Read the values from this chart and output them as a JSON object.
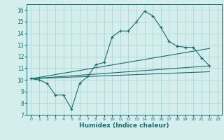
{
  "xlabel": "Humidex (Indice chaleur)",
  "xlim": [
    -0.5,
    23.5
  ],
  "ylim": [
    7.0,
    16.5
  ],
  "yticks": [
    7,
    8,
    9,
    10,
    11,
    12,
    13,
    14,
    15,
    16
  ],
  "xticks": [
    0,
    1,
    2,
    3,
    4,
    5,
    6,
    7,
    8,
    9,
    10,
    11,
    12,
    13,
    14,
    15,
    16,
    17,
    18,
    19,
    20,
    21,
    22,
    23
  ],
  "bg_color": "#d4eeee",
  "line_color": "#1a6b6b",
  "grid_color": "#aacfcf",
  "line1_x": [
    0,
    1,
    2,
    3,
    4,
    5,
    6,
    7,
    8,
    9,
    10,
    11,
    12,
    13,
    14,
    15,
    16,
    17,
    18,
    19,
    20,
    21,
    22
  ],
  "line1_y": [
    10.1,
    10.0,
    9.7,
    8.7,
    8.7,
    7.5,
    9.7,
    10.3,
    11.3,
    11.5,
    13.7,
    14.2,
    14.2,
    15.0,
    15.9,
    15.5,
    14.5,
    13.3,
    12.9,
    12.8,
    12.8,
    11.9,
    11.2
  ],
  "line2_x": [
    0,
    22
  ],
  "line2_y": [
    10.1,
    11.2
  ],
  "line3_x": [
    0,
    22
  ],
  "line3_y": [
    10.1,
    12.7
  ],
  "line4_x": [
    0,
    22
  ],
  "line4_y": [
    10.1,
    10.7
  ]
}
